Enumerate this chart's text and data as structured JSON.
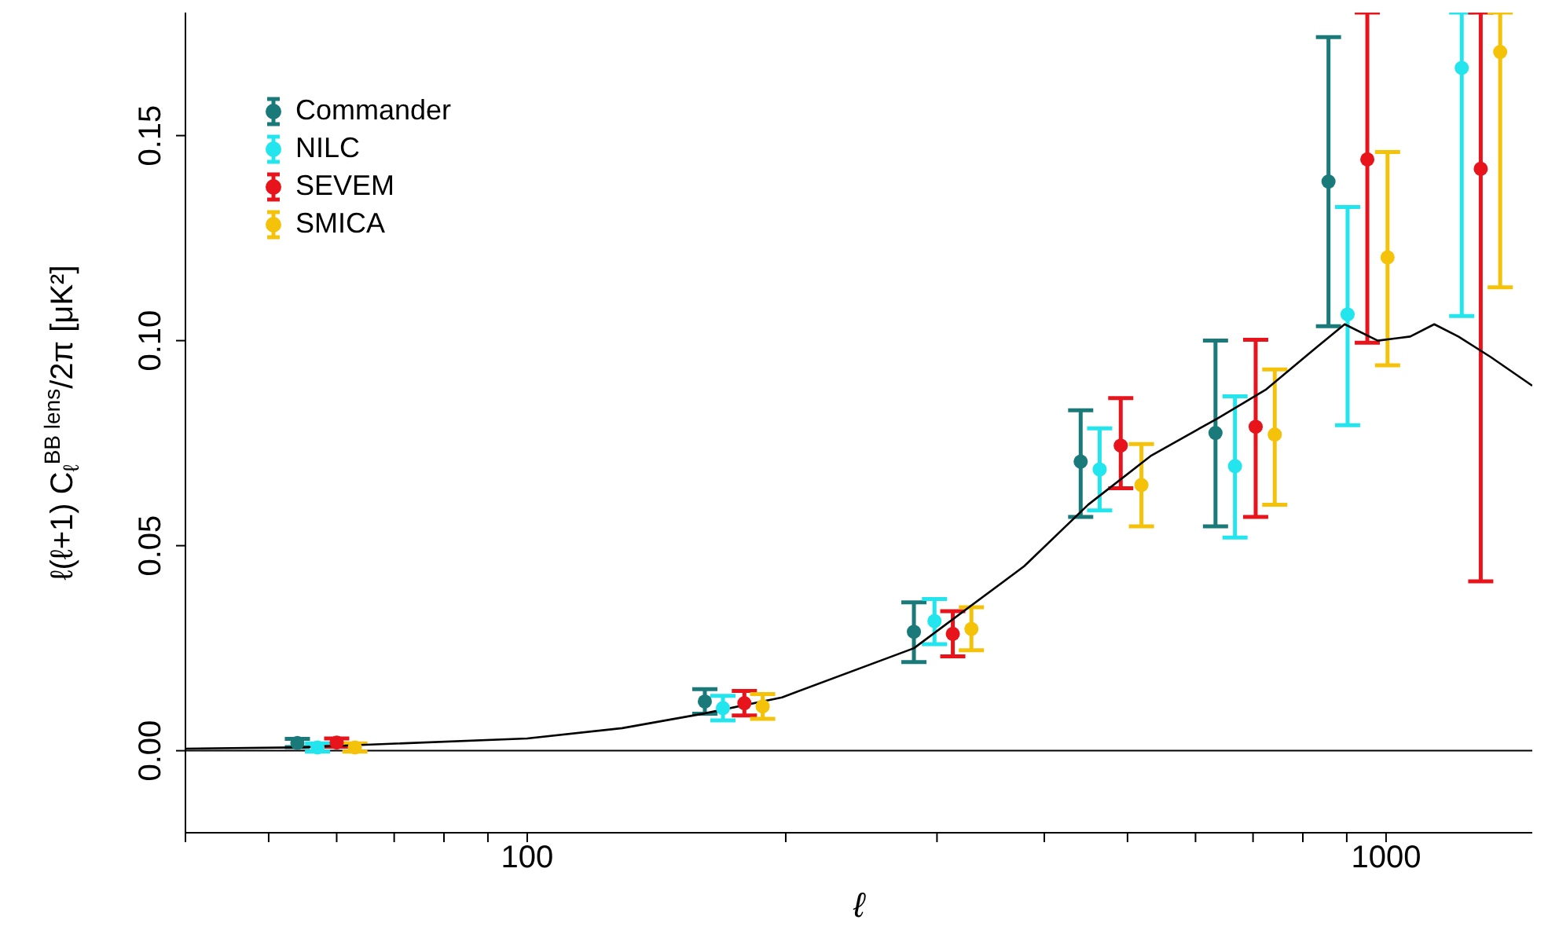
{
  "chart_data": {
    "type": "scatter",
    "xlabel": "ℓ",
    "ylabel": "ℓ(ℓ+1)  C$_{ℓ}$$^{BB lens}$/2π   [μK²]",
    "log": "x",
    "xlim": [
      40,
      1480
    ],
    "ylim": [
      -0.02,
      0.18
    ],
    "xticks": [
      {
        "value": 40,
        "label": null
      },
      {
        "value": 50,
        "label": null
      },
      {
        "value": 60,
        "label": null
      },
      {
        "value": 70,
        "label": null
      },
      {
        "value": 80,
        "label": null
      },
      {
        "value": 90,
        "label": null
      },
      100,
      {
        "value": 200,
        "label": null
      },
      {
        "value": 300,
        "label": null
      },
      {
        "value": 400,
        "label": null
      },
      {
        "value": 500,
        "label": null
      },
      {
        "value": 600,
        "label": null
      },
      {
        "value": 700,
        "label": null
      },
      {
        "value": 800,
        "label": null
      },
      {
        "value": 900,
        "label": null
      },
      1000
    ],
    "yticks": [
      {
        "value": 0,
        "label": "0.00"
      },
      {
        "value": 0.05,
        "label": "0.05"
      },
      {
        "value": 0.1,
        "label": "0.10"
      },
      {
        "value": 0.15,
        "label": "0.15"
      }
    ],
    "grid": false,
    "legend": "top left",
    "marker": "circle",
    "ref_lines": [
      {
        "axis": "y",
        "value": 0,
        "color": "#000000"
      }
    ],
    "series": [
      {
        "name": "Commander",
        "color": "#1a7a7a",
        "x": [
          54,
          161,
          282,
          441,
          633,
          857
        ],
        "values": [
          0.0019,
          0.012,
          0.029,
          0.0705,
          0.0775,
          0.1388
        ],
        "errors": [
          0.001,
          0.003,
          [
            0.0216,
            0.0362
          ],
          [
            0.057,
            0.083
          ],
          [
            0.0547,
            0.1
          ],
          [
            0.1035,
            0.174
          ]
        ]
      },
      {
        "name": "NILC",
        "color": "#22e5ee",
        "x": [
          57,
          169,
          298,
          464,
          667,
          902,
          1225
        ],
        "values": [
          0.0008,
          0.0104,
          0.0316,
          0.0686,
          0.0694,
          0.1064,
          0.1665
        ],
        "errors": [
          0.001,
          0.003,
          [
            0.026,
            0.037
          ],
          [
            0.0586,
            0.0786
          ],
          [
            0.052,
            0.0864
          ],
          [
            0.0794,
            0.1326
          ],
          [
            0.106,
            0.18
          ]
        ]
      },
      {
        "name": "SEVEM",
        "color": "#e8141c",
        "x": [
          60,
          179,
          313,
          491,
          705,
          951,
          1289
        ],
        "values": [
          0.002,
          0.0116,
          0.0285,
          0.0744,
          0.079,
          0.1442,
          0.1419
        ],
        "errors": [
          0.001,
          0.003,
          [
            0.023,
            0.034
          ],
          [
            0.064,
            0.086
          ],
          [
            0.057,
            0.1002
          ],
          [
            0.0995,
            0.18
          ],
          [
            0.0413,
            0.18
          ]
        ]
      },
      {
        "name": "SMICA",
        "color": "#f5c20a",
        "x": [
          63,
          188,
          329,
          519,
          742,
          1004,
          1358
        ],
        "values": [
          0.0008,
          0.0108,
          0.0297,
          0.0648,
          0.0771,
          0.1203,
          0.1704
        ],
        "errors": [
          0.001,
          0.003,
          [
            0.0245,
            0.035
          ],
          [
            0.0547,
            0.0748
          ],
          [
            0.06,
            0.093
          ],
          [
            0.094,
            0.146
          ],
          [
            0.113,
            0.18
          ]
        ]
      },
      {
        "type": "line",
        "marker": "none",
        "color": "#000000",
        "x": [
          40,
          54,
          100,
          129,
          160,
          198,
          282,
          379,
          450,
          533,
          636,
          724,
          826,
          895,
          978,
          1067,
          1138,
          1214,
          1324,
          1480
        ],
        "values": [
          0.0005,
          0.0008,
          0.003,
          0.0055,
          0.009,
          0.013,
          0.025,
          0.045,
          0.06,
          0.072,
          0.081,
          0.088,
          0.098,
          0.104,
          0.1,
          0.101,
          0.104,
          0.101,
          0.096,
          0.089
        ]
      }
    ]
  }
}
